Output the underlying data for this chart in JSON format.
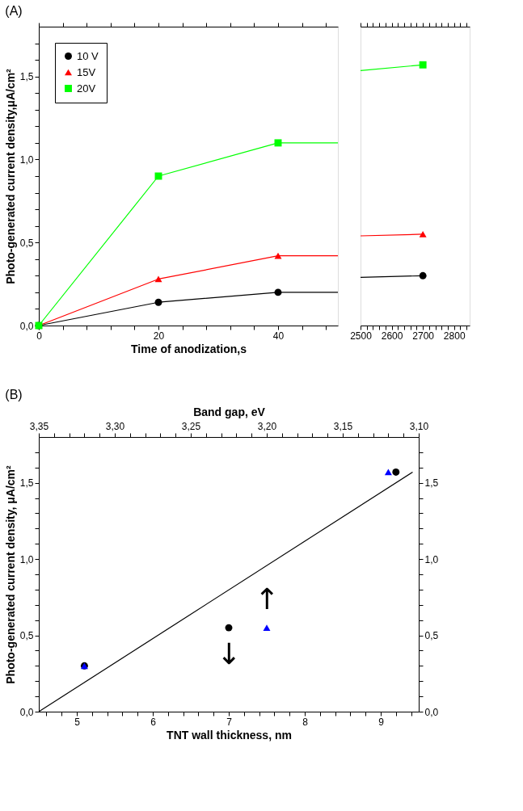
{
  "chart_data": [
    {
      "type": "line",
      "title": "(A)",
      "xlabel": "Time of anodization,s",
      "ylabel": "Photo-generated current density,μA/cm²",
      "legend": "top left",
      "grid": false,
      "xlim": [
        0,
        50
      ],
      "xticks": [
        0,
        {
          "value": 4,
          "label": null
        },
        {
          "value": 8,
          "label": null
        },
        {
          "value": 12,
          "label": null
        },
        {
          "value": 16,
          "label": null
        },
        20,
        {
          "value": 24,
          "label": null
        },
        {
          "value": 28,
          "label": null
        },
        {
          "value": 32,
          "label": null
        },
        {
          "value": 36,
          "label": null
        },
        40,
        {
          "value": 44,
          "label": null
        },
        {
          "value": 48,
          "label": null
        }
      ],
      "ylim": [
        0,
        1.8
      ],
      "yticks": [
        {
          "value": 0,
          "label": "0,0"
        },
        {
          "value": 0.1,
          "label": null
        },
        {
          "value": 0.2,
          "label": null
        },
        {
          "value": 0.3,
          "label": null
        },
        {
          "value": 0.4,
          "label": null
        },
        {
          "value": 0.5,
          "label": "0,5"
        },
        {
          "value": 0.6,
          "label": null
        },
        {
          "value": 0.7,
          "label": null
        },
        {
          "value": 0.8,
          "label": null
        },
        {
          "value": 0.9,
          "label": null
        },
        {
          "value": 1.0,
          "label": "1,0"
        },
        {
          "value": 1.1,
          "label": null
        },
        {
          "value": 1.2,
          "label": null
        },
        {
          "value": 1.3,
          "label": null
        },
        {
          "value": 1.4,
          "label": null
        },
        {
          "value": 1.5,
          "label": "1,5"
        },
        {
          "value": 1.6,
          "label": null
        },
        {
          "value": 1.7,
          "label": null
        }
      ],
      "series": [
        {
          "name": "10 V",
          "color": "#000000",
          "marker": "circle",
          "x": [
            0,
            20,
            40
          ],
          "values": [
            0,
            0.14,
            0.2
          ]
        },
        {
          "name": "15V",
          "color": "#ff0000",
          "marker": "triangle",
          "x": [
            0,
            20,
            40
          ],
          "values": [
            0,
            0.28,
            0.42
          ]
        },
        {
          "name": "20V",
          "color": "#00ff00",
          "marker": "square",
          "x": [
            0,
            20,
            40
          ],
          "values": [
            0,
            0.9,
            1.1
          ]
        },
        {
          "color": "#000000",
          "marker": "none",
          "x": [
            40,
            50
          ],
          "values": [
            0.2,
            0.2
          ]
        },
        {
          "color": "#ff0000",
          "marker": "none",
          "x": [
            40,
            50
          ],
          "values": [
            0.42,
            0.42
          ]
        },
        {
          "color": "#00ff00",
          "marker": "none",
          "x": [
            40,
            50
          ],
          "values": [
            1.1,
            1.1
          ]
        }
      ]
    },
    {
      "type": "line",
      "tick_labels": "x",
      "grid": false,
      "xlim": [
        2500,
        2850
      ],
      "xticks": [
        2500,
        {
          "value": 2520,
          "label": null
        },
        {
          "value": 2540,
          "label": null
        },
        {
          "value": 2560,
          "label": null
        },
        {
          "value": 2580,
          "label": null
        },
        2600,
        {
          "value": 2620,
          "label": null
        },
        {
          "value": 2640,
          "label": null
        },
        {
          "value": 2660,
          "label": null
        },
        {
          "value": 2680,
          "label": null
        },
        2700,
        {
          "value": 2720,
          "label": null
        },
        {
          "value": 2740,
          "label": null
        },
        {
          "value": 2760,
          "label": null
        },
        {
          "value": 2780,
          "label": null
        },
        2800,
        {
          "value": 2820,
          "label": null
        },
        {
          "value": 2840,
          "label": null
        }
      ],
      "ylim": [
        0,
        1.8
      ],
      "series": [
        {
          "color": "#000000",
          "marker": "none",
          "x": [
            2500,
            2700
          ],
          "values": [
            0.29,
            0.3
          ]
        },
        {
          "color": "#ff0000",
          "marker": "none",
          "x": [
            2500,
            2700
          ],
          "values": [
            0.54,
            0.55
          ]
        },
        {
          "color": "#00ff00",
          "marker": "none",
          "x": [
            2500,
            2700
          ],
          "values": [
            1.535,
            1.57
          ]
        },
        {
          "type": "scatter",
          "color": "#000000",
          "marker": "circle",
          "x": [
            2700
          ],
          "values": [
            0.3
          ]
        },
        {
          "type": "scatter",
          "color": "#ff0000",
          "marker": "triangle",
          "x": [
            2700
          ],
          "values": [
            0.55
          ]
        },
        {
          "type": "scatter",
          "color": "#00ff00",
          "marker": "square",
          "x": [
            2700
          ],
          "values": [
            1.57
          ]
        }
      ]
    },
    {
      "type": "scatter",
      "title": "(B)",
      "xlabel": "TNT wall thickness, nm",
      "x2label": "Band gap, eV",
      "ylabel": "Photo-generated current density, μA/cm²",
      "grid": false,
      "xlim": [
        4.5,
        9.5
      ],
      "xticks": [
        {
          "value": 4.6,
          "label": null
        },
        {
          "value": 4.8,
          "label": null
        },
        5,
        {
          "value": 5.2,
          "label": null
        },
        {
          "value": 5.4,
          "label": null
        },
        {
          "value": 5.6,
          "label": null
        },
        {
          "value": 5.8,
          "label": null
        },
        6,
        {
          "value": 6.2,
          "label": null
        },
        {
          "value": 6.4,
          "label": null
        },
        {
          "value": 6.6,
          "label": null
        },
        {
          "value": 6.8,
          "label": null
        },
        7,
        {
          "value": 7.2,
          "label": null
        },
        {
          "value": 7.4,
          "label": null
        },
        {
          "value": 7.6,
          "label": null
        },
        {
          "value": 7.8,
          "label": null
        },
        8,
        {
          "value": 8.2,
          "label": null
        },
        {
          "value": 8.4,
          "label": null
        },
        {
          "value": 8.6,
          "label": null
        },
        {
          "value": 8.8,
          "label": null
        },
        9,
        {
          "value": 9.2,
          "label": null
        },
        {
          "value": 9.4,
          "label": null
        }
      ],
      "x2lim": [
        3.35,
        3.1
      ],
      "x2ticks": [
        {
          "value": 3.35,
          "label": "3,35"
        },
        {
          "value": 3.34,
          "label": null
        },
        {
          "value": 3.33,
          "label": null
        },
        {
          "value": 3.32,
          "label": null
        },
        {
          "value": 3.31,
          "label": null
        },
        {
          "value": 3.3,
          "label": "3,30"
        },
        {
          "value": 3.29,
          "label": null
        },
        {
          "value": 3.28,
          "label": null
        },
        {
          "value": 3.27,
          "label": null
        },
        {
          "value": 3.26,
          "label": null
        },
        {
          "value": 3.25,
          "label": "3,25"
        },
        {
          "value": 3.24,
          "label": null
        },
        {
          "value": 3.23,
          "label": null
        },
        {
          "value": 3.22,
          "label": null
        },
        {
          "value": 3.21,
          "label": null
        },
        {
          "value": 3.2,
          "label": "3,20"
        },
        {
          "value": 3.19,
          "label": null
        },
        {
          "value": 3.18,
          "label": null
        },
        {
          "value": 3.17,
          "label": null
        },
        {
          "value": 3.16,
          "label": null
        },
        {
          "value": 3.15,
          "label": "3,15"
        },
        {
          "value": 3.14,
          "label": null
        },
        {
          "value": 3.13,
          "label": null
        },
        {
          "value": 3.12,
          "label": null
        },
        {
          "value": 3.11,
          "label": null
        },
        {
          "value": 3.1,
          "label": "3,10"
        }
      ],
      "ylim": [
        0,
        1.8
      ],
      "yticks": [
        {
          "value": 0,
          "label": "0,0"
        },
        {
          "value": 0.1,
          "label": null
        },
        {
          "value": 0.2,
          "label": null
        },
        {
          "value": 0.3,
          "label": null
        },
        {
          "value": 0.4,
          "label": null
        },
        {
          "value": 0.5,
          "label": "0,5"
        },
        {
          "value": 0.6,
          "label": null
        },
        {
          "value": 0.7,
          "label": null
        },
        {
          "value": 0.8,
          "label": null
        },
        {
          "value": 0.9,
          "label": null
        },
        {
          "value": 1.0,
          "label": "1,0"
        },
        {
          "value": 1.1,
          "label": null
        },
        {
          "value": 1.2,
          "label": null
        },
        {
          "value": 1.3,
          "label": null
        },
        {
          "value": 1.4,
          "label": null
        },
        {
          "value": 1.5,
          "label": "1,5"
        },
        {
          "value": 1.6,
          "label": null
        },
        {
          "value": 1.7,
          "label": null
        }
      ],
      "y2lim": [
        0,
        1.8
      ],
      "y2ticks": [
        {
          "value": 0,
          "label": "0,0"
        },
        {
          "value": 0.1,
          "label": null
        },
        {
          "value": 0.2,
          "label": null
        },
        {
          "value": 0.3,
          "label": null
        },
        {
          "value": 0.4,
          "label": null
        },
        {
          "value": 0.5,
          "label": "0,5"
        },
        {
          "value": 0.6,
          "label": null
        },
        {
          "value": 0.7,
          "label": null
        },
        {
          "value": 0.8,
          "label": null
        },
        {
          "value": 0.9,
          "label": null
        },
        {
          "value": 1.0,
          "label": "1,0"
        },
        {
          "value": 1.1,
          "label": null
        },
        {
          "value": 1.2,
          "label": null
        },
        {
          "value": 1.3,
          "label": null
        },
        {
          "value": 1.4,
          "label": null
        },
        {
          "value": 1.5,
          "label": "1,5"
        },
        {
          "value": 1.6,
          "label": null
        },
        {
          "value": 1.7,
          "label": null
        }
      ],
      "series": [
        {
          "color": "#000000",
          "marker": "circle",
          "x": [
            5.1,
            7.0,
            9.2
          ],
          "values": [
            0.3,
            0.55,
            1.57
          ]
        },
        {
          "color": "#0000ff",
          "marker": "triangle",
          "axis": "x2",
          "x": [
            3.32,
            3.2,
            3.12
          ],
          "values": [
            0.3,
            0.55,
            1.57
          ]
        },
        {
          "type": "line",
          "color": "#000000",
          "marker": "none",
          "x": [
            4.5,
            9.42
          ],
          "values": [
            0,
            1.57
          ]
        }
      ],
      "annotations": [
        {
          "text": "↓",
          "x": 7.0,
          "y": 0.55
        },
        {
          "text": "↑",
          "x": 7.5,
          "y": 0.55
        }
      ]
    }
  ]
}
